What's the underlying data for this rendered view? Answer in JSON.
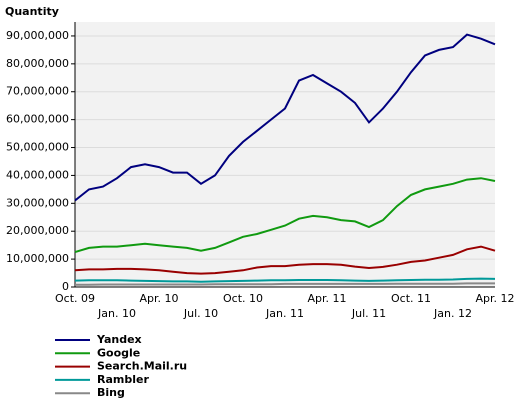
{
  "chart_data": {
    "type": "line",
    "title": "Quantity",
    "categories": [
      "Oct. 09",
      null,
      null,
      "Jan. 10",
      null,
      null,
      "Apr. 10",
      null,
      null,
      "Jul. 10",
      null,
      null,
      "Oct. 10",
      null,
      null,
      "Jan. 11",
      null,
      null,
      "Apr. 11",
      null,
      null,
      "Jul. 11",
      null,
      null,
      "Oct. 11",
      null,
      null,
      "Jan. 12",
      null,
      null,
      "Apr. 12"
    ],
    "series": [
      {
        "name": "Yandex",
        "color": "#00007f",
        "values": [
          31000000,
          35000000,
          36000000,
          39000000,
          43000000,
          44000000,
          43000000,
          41000000,
          41000000,
          37000000,
          40000000,
          47000000,
          52000000,
          56000000,
          60000000,
          64000000,
          74000000,
          76000000,
          73000000,
          70000000,
          66000000,
          59000000,
          64000000,
          70000000,
          77000000,
          83000000,
          85000000,
          86000000,
          90500000,
          89000000,
          87000000
        ]
      },
      {
        "name": "Google",
        "color": "#109a10",
        "values": [
          12500000,
          14000000,
          14500000,
          14500000,
          15000000,
          15500000,
          15000000,
          14500000,
          14000000,
          13000000,
          14000000,
          16000000,
          18000000,
          19000000,
          20500000,
          22000000,
          24500000,
          25500000,
          25000000,
          24000000,
          23500000,
          21500000,
          24000000,
          29000000,
          33000000,
          35000000,
          36000000,
          37000000,
          38500000,
          39000000,
          38000000
        ]
      },
      {
        "name": "Search.Mail.ru",
        "color": "#990000",
        "values": [
          6000000,
          6300000,
          6300000,
          6500000,
          6500000,
          6300000,
          6000000,
          5500000,
          5000000,
          4800000,
          5000000,
          5500000,
          6000000,
          7000000,
          7500000,
          7500000,
          8000000,
          8200000,
          8200000,
          8000000,
          7300000,
          6800000,
          7200000,
          8000000,
          9000000,
          9500000,
          10500000,
          11500000,
          13500000,
          14500000,
          13000000
        ]
      },
      {
        "name": "Rambler",
        "color": "#009999",
        "values": [
          2300000,
          2400000,
          2400000,
          2400000,
          2300000,
          2200000,
          2100000,
          2000000,
          2000000,
          1900000,
          2000000,
          2100000,
          2200000,
          2300000,
          2400000,
          2400000,
          2500000,
          2500000,
          2500000,
          2400000,
          2300000,
          2200000,
          2300000,
          2400000,
          2500000,
          2600000,
          2600000,
          2700000,
          2900000,
          3000000,
          2900000
        ]
      },
      {
        "name": "Bing",
        "color": "#888888",
        "values": [
          800000,
          800000,
          900000,
          900000,
          900000,
          900000,
          900000,
          900000,
          900000,
          900000,
          1000000,
          1000000,
          1000000,
          1000000,
          1000000,
          1100000,
          1100000,
          1100000,
          1100000,
          1100000,
          1100000,
          1100000,
          1100000,
          1200000,
          1200000,
          1200000,
          1200000,
          1200000,
          1300000,
          1300000,
          1300000
        ]
      }
    ],
    "ylim": [
      0,
      95000000
    ],
    "yticks": [
      0,
      {
        "value": 10000000,
        "label": "10,000,000"
      },
      {
        "value": 20000000,
        "label": "20,000,000"
      },
      {
        "value": 30000000,
        "label": "30,000,000"
      },
      {
        "value": 40000000,
        "label": "40,000,000"
      },
      {
        "value": 50000000,
        "label": "50,000,000"
      },
      {
        "value": 60000000,
        "label": "60,000,000"
      },
      {
        "value": 70000000,
        "label": "70,000,000"
      },
      {
        "value": 80000000,
        "label": "80,000,000"
      },
      {
        "value": 90000000,
        "label": "90,000,000"
      }
    ],
    "grid": true
  }
}
